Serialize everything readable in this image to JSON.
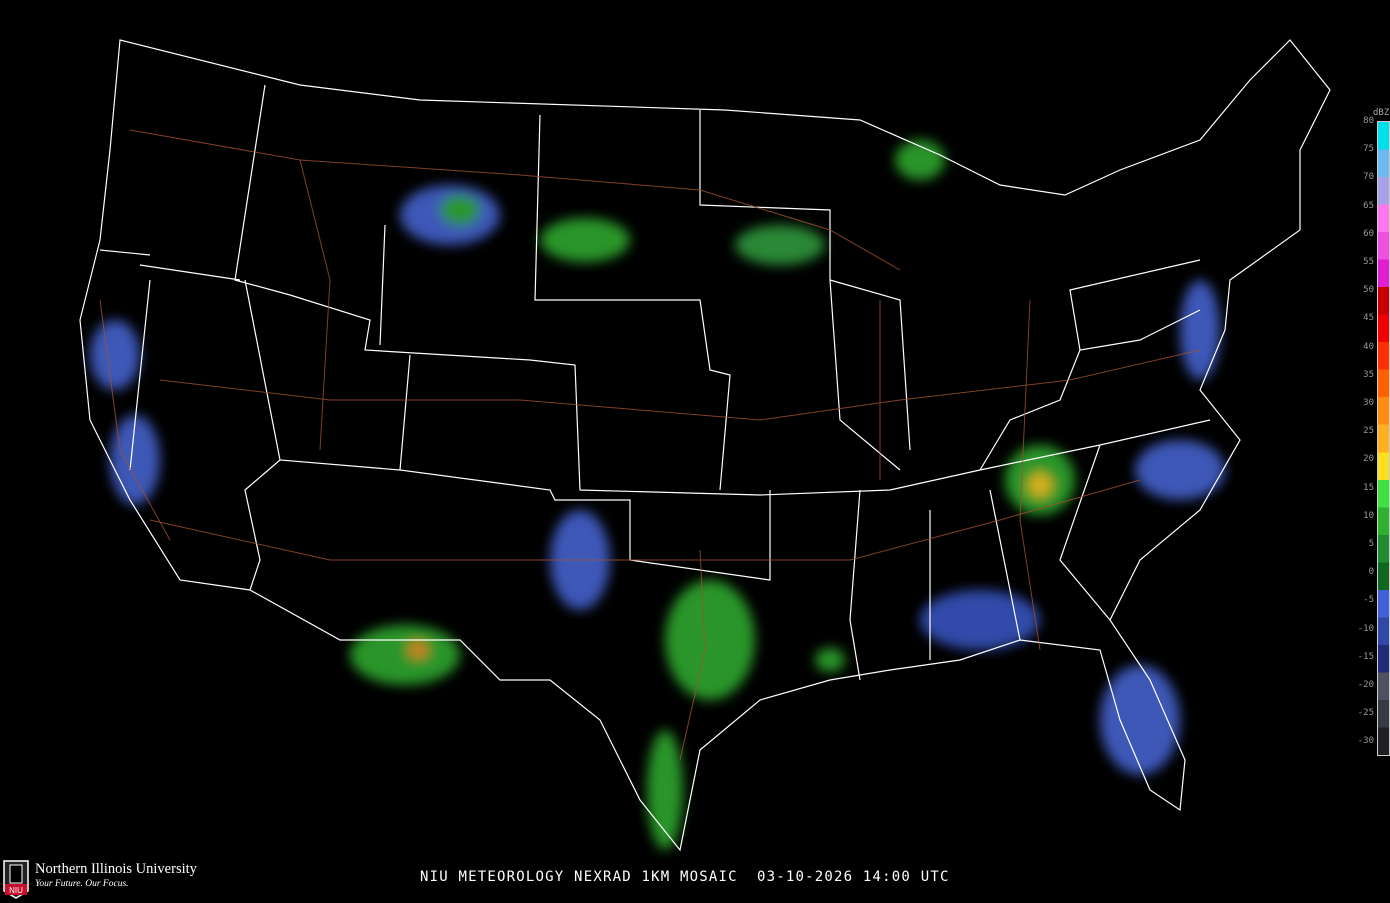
{
  "caption": "NIU METEOROLOGY NEXRAD 1KM MOSAIC  03-10-2026 14:00 UTC",
  "logo": {
    "name": "Northern Illinois University",
    "tagline": "Your Future. Our Focus.",
    "badge": "NIU",
    "badge_color": "#c8102e"
  },
  "legend": {
    "unit": "dBZ",
    "ticks": [
      "80",
      "75",
      "70",
      "65",
      "60",
      "55",
      "50",
      "45",
      "40",
      "35",
      "30",
      "25",
      "20",
      "15",
      "10",
      "5",
      "0",
      "-5",
      "-10",
      "-15",
      "-20",
      "-25",
      "-30"
    ],
    "colors": [
      "#00e0e8",
      "#70b8f0",
      "#a8a0e8",
      "#ff78f0",
      "#f050e0",
      "#e020d0",
      "#c80000",
      "#f00000",
      "#ff3000",
      "#ff6000",
      "#ff8c10",
      "#ffb020",
      "#ffe020",
      "#40e040",
      "#30b030",
      "#208c30",
      "#106820",
      "#4060d8",
      "#3048a8",
      "#202c78",
      "#505060",
      "#3a3a44",
      "#202024"
    ]
  },
  "map": {
    "background": "#000000",
    "state_border_color": "#ffffff",
    "highway_color": "#a0522d"
  }
}
